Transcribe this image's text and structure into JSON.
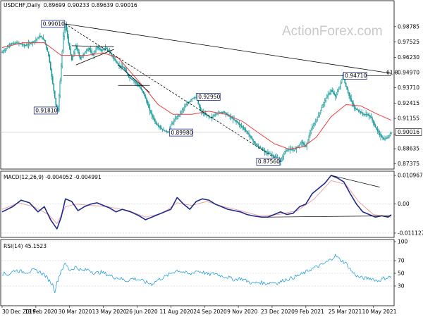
{
  "watermark": "ActionForex.com",
  "chart_data": [
    {
      "type": "line",
      "title": "USDCHF,Daily",
      "ohlc": [
        "0.89699",
        "0.90233",
        "0.89639",
        "0.90016"
      ],
      "ylim": [
        0.8706,
        1.0024
      ],
      "y_ticks": [
        "0.98785",
        "0.97525",
        "0.96230",
        "0.94970",
        "0.93710",
        "0.92415",
        "0.91155",
        "0.89860",
        "0.88635",
        "0.87375"
      ],
      "y_tick_values": [
        0.98785,
        0.97525,
        0.9623,
        0.9497,
        0.9371,
        0.92415,
        0.91155,
        0.8986,
        0.88635,
        0.87375
      ],
      "x_labels": [
        "30 Dec 2019",
        "13 Feb 2020",
        "30 Mar 2020",
        "13 May 2020",
        "26 Jun 2020",
        "11 Aug 2020",
        "24 Sep 2020",
        "9 Nov 2020",
        "23 Dec 2020",
        "9 Feb 2021",
        "25 Mar 2021",
        "10 May 2021"
      ],
      "x_label_index": [
        0,
        32,
        64,
        96,
        128,
        160,
        192,
        224,
        256,
        288,
        320,
        352
      ],
      "price_path": [
        [
          0,
          0.9665
        ],
        [
          8,
          0.9735
        ],
        [
          14,
          0.9745
        ],
        [
          22,
          0.972
        ],
        [
          30,
          0.9755
        ],
        [
          36,
          0.98
        ],
        [
          40,
          0.9765
        ],
        [
          44,
          0.964
        ],
        [
          48,
          0.9405
        ],
        [
          51,
          0.9225
        ],
        [
          53,
          0.9181
        ],
        [
          56,
          0.955
        ],
        [
          58,
          0.98
        ],
        [
          60,
          0.9901
        ],
        [
          63,
          0.974
        ],
        [
          66,
          0.96
        ],
        [
          70,
          0.972
        ],
        [
          74,
          0.961
        ],
        [
          78,
          0.966
        ],
        [
          82,
          0.97
        ],
        [
          86,
          0.964
        ],
        [
          90,
          0.971
        ],
        [
          94,
          0.968
        ],
        [
          98,
          0.97
        ],
        [
          102,
          0.967
        ],
        [
          106,
          0.961
        ],
        [
          110,
          0.956
        ],
        [
          116,
          0.953
        ],
        [
          120,
          0.946
        ],
        [
          126,
          0.942
        ],
        [
          130,
          0.938
        ],
        [
          134,
          0.933
        ],
        [
          140,
          0.918
        ],
        [
          146,
          0.907
        ],
        [
          152,
          0.902
        ],
        [
          158,
          0.8998
        ],
        [
          160,
          0.906
        ],
        [
          164,
          0.911
        ],
        [
          168,
          0.915
        ],
        [
          172,
          0.92
        ],
        [
          176,
          0.924
        ],
        [
          180,
          0.928
        ],
        [
          184,
          0.9295
        ],
        [
          188,
          0.918
        ],
        [
          192,
          0.915
        ],
        [
          198,
          0.912
        ],
        [
          204,
          0.916
        ],
        [
          210,
          0.917
        ],
        [
          216,
          0.913
        ],
        [
          222,
          0.909
        ],
        [
          228,
          0.904
        ],
        [
          234,
          0.898
        ],
        [
          240,
          0.89
        ],
        [
          246,
          0.886
        ],
        [
          252,
          0.883
        ],
        [
          258,
          0.88
        ],
        [
          262,
          0.878
        ],
        [
          264,
          0.8756
        ],
        [
          268,
          0.884
        ],
        [
          272,
          0.886
        ],
        [
          276,
          0.885
        ],
        [
          280,
          0.888
        ],
        [
          284,
          0.892
        ],
        [
          288,
          0.888
        ],
        [
          292,
          0.9
        ],
        [
          296,
          0.907
        ],
        [
          300,
          0.914
        ],
        [
          304,
          0.923
        ],
        [
          308,
          0.93
        ],
        [
          312,
          0.935
        ],
        [
          316,
          0.93
        ],
        [
          320,
          0.938
        ],
        [
          323,
          0.9471
        ],
        [
          326,
          0.938
        ],
        [
          330,
          0.928
        ],
        [
          334,
          0.92
        ],
        [
          338,
          0.918
        ],
        [
          342,
          0.915
        ],
        [
          346,
          0.915
        ],
        [
          350,
          0.912
        ],
        [
          354,
          0.904
        ],
        [
          358,
          0.898
        ],
        [
          362,
          0.894
        ],
        [
          366,
          0.896
        ],
        [
          369,
          0.9002
        ]
      ],
      "ma_path": [
        [
          0,
          0.9705
        ],
        [
          20,
          0.9745
        ],
        [
          40,
          0.9745
        ],
        [
          56,
          0.964
        ],
        [
          64,
          0.964
        ],
        [
          80,
          0.964
        ],
        [
          96,
          0.966
        ],
        [
          110,
          0.962
        ],
        [
          124,
          0.948
        ],
        [
          136,
          0.936
        ],
        [
          148,
          0.923
        ],
        [
          162,
          0.915
        ],
        [
          180,
          0.915
        ],
        [
          196,
          0.9175
        ],
        [
          212,
          0.915
        ],
        [
          228,
          0.909
        ],
        [
          244,
          0.899
        ],
        [
          258,
          0.8905
        ],
        [
          272,
          0.886
        ],
        [
          286,
          0.888
        ],
        [
          298,
          0.896
        ],
        [
          312,
          0.913
        ],
        [
          326,
          0.923
        ],
        [
          340,
          0.922
        ],
        [
          356,
          0.915
        ],
        [
          369,
          0.91
        ]
      ],
      "trendlines": [
        {
          "from": [
            60,
            0.9901
          ],
          "to": [
            369,
            0.949
          ]
        },
        {
          "from": [
            60,
            0.9901
          ],
          "to": [
            264,
            0.8756
          ]
        },
        {
          "from": [
            66,
            0.972
          ],
          "to": [
            106,
            0.971
          ]
        },
        {
          "from": [
            70,
            0.956
          ],
          "to": [
            106,
            0.969
          ]
        },
        {
          "from": [
            110,
            0.956
          ],
          "to": [
            140,
            0.933
          ]
        },
        {
          "from": [
            110,
            0.939
          ],
          "to": [
            140,
            0.939
          ]
        }
      ],
      "fib_level": {
        "label": "61.8",
        "value": 0.9471,
        "x_from": 58,
        "x_to": 369
      },
      "current_price_label": "0.90016",
      "current_price_value": 0.90016,
      "annotations": [
        {
          "text": "0.99010",
          "x": 60,
          "y": 0.9901,
          "anchor": "right"
        },
        {
          "text": "0.91810",
          "x": 53,
          "y": 0.9181,
          "anchor": "right"
        },
        {
          "text": "0.89980",
          "x": 158,
          "y": 0.8998,
          "anchor": "left"
        },
        {
          "text": "0.92950",
          "x": 184,
          "y": 0.9295,
          "anchor": "left"
        },
        {
          "text": "0.87560",
          "x": 264,
          "y": 0.8756,
          "anchor": "right"
        },
        {
          "text": "0.94710",
          "x": 323,
          "y": 0.9471,
          "anchor": "left"
        }
      ]
    },
    {
      "type": "line",
      "title": "MACD(12,26,9) -0.004052 -0.004991",
      "ylim": [
        -0.0125,
        0.0118
      ],
      "y_ticks": [
        "0.010967",
        "0.00",
        "-0.011127"
      ],
      "y_tick_values": [
        0.010967,
        0.0,
        -0.011127
      ],
      "macd_path": [
        [
          0,
          -0.003
        ],
        [
          10,
          -0.001
        ],
        [
          18,
          0.0015
        ],
        [
          26,
          0.0005
        ],
        [
          34,
          -0.003
        ],
        [
          40,
          -0.001
        ],
        [
          46,
          -0.006
        ],
        [
          52,
          -0.0095
        ],
        [
          56,
          -0.005
        ],
        [
          60,
          0.002
        ],
        [
          66,
          0.001
        ],
        [
          72,
          -0.0025
        ],
        [
          78,
          -0.001
        ],
        [
          84,
          0.0
        ],
        [
          90,
          0.0005
        ],
        [
          96,
          -0.0005
        ],
        [
          102,
          -0.0015
        ],
        [
          108,
          -0.003
        ],
        [
          114,
          -0.002
        ],
        [
          122,
          -0.003
        ],
        [
          130,
          -0.0045
        ],
        [
          136,
          -0.006
        ],
        [
          142,
          -0.005
        ],
        [
          148,
          -0.004
        ],
        [
          154,
          -0.003
        ],
        [
          160,
          -0.002
        ],
        [
          166,
          0.0025
        ],
        [
          172,
          0.0
        ],
        [
          178,
          -0.002
        ],
        [
          184,
          0.001
        ],
        [
          190,
          0.002
        ],
        [
          196,
          0.0015
        ],
        [
          202,
          0.0
        ],
        [
          208,
          -0.001
        ],
        [
          214,
          -0.002
        ],
        [
          220,
          -0.0025
        ],
        [
          226,
          -0.003
        ],
        [
          232,
          -0.004
        ],
        [
          238,
          -0.0045
        ],
        [
          246,
          -0.005
        ],
        [
          252,
          -0.005
        ],
        [
          258,
          -0.004
        ],
        [
          264,
          -0.003
        ],
        [
          270,
          -0.004
        ],
        [
          276,
          -0.0035
        ],
        [
          282,
          -0.001
        ],
        [
          288,
          0.0
        ],
        [
          294,
          0.004
        ],
        [
          300,
          0.006
        ],
        [
          306,
          0.008
        ],
        [
          312,
          0.011
        ],
        [
          318,
          0.01
        ],
        [
          324,
          0.0085
        ],
        [
          330,
          0.004
        ],
        [
          336,
          0.0
        ],
        [
          342,
          -0.003
        ],
        [
          348,
          -0.004
        ],
        [
          354,
          -0.005
        ],
        [
          360,
          -0.0045
        ],
        [
          366,
          -0.005
        ],
        [
          369,
          -0.0041
        ]
      ],
      "signal_path": [
        [
          0,
          -0.002
        ],
        [
          16,
          0.0005
        ],
        [
          30,
          -0.001
        ],
        [
          44,
          -0.004
        ],
        [
          52,
          -0.0075
        ],
        [
          60,
          -0.001
        ],
        [
          70,
          0.0
        ],
        [
          84,
          -0.0005
        ],
        [
          100,
          -0.001
        ],
        [
          120,
          -0.0025
        ],
        [
          136,
          -0.005
        ],
        [
          152,
          -0.0035
        ],
        [
          166,
          0.0005
        ],
        [
          180,
          -0.0005
        ],
        [
          194,
          0.001
        ],
        [
          210,
          -0.001
        ],
        [
          226,
          -0.0025
        ],
        [
          244,
          -0.0045
        ],
        [
          262,
          -0.004
        ],
        [
          280,
          -0.0025
        ],
        [
          296,
          0.002
        ],
        [
          312,
          0.009
        ],
        [
          326,
          0.0075
        ],
        [
          338,
          0.001
        ],
        [
          352,
          -0.004
        ],
        [
          369,
          -0.005
        ]
      ],
      "trendlines": [
        {
          "from": [
            252,
            -0.005
          ],
          "to": [
            369,
            -0.0045
          ]
        },
        {
          "from": [
            312,
            0.011
          ],
          "to": [
            358,
            0.0065
          ]
        }
      ]
    },
    {
      "type": "line",
      "title": "RSI(14) 45.1523",
      "ylim": [
        0,
        100
      ],
      "y_ticks": [
        "100",
        "70",
        "50",
        "30"
      ],
      "y_tick_values": [
        100,
        70,
        50,
        30
      ],
      "rsi_path": [
        [
          0,
          50
        ],
        [
          6,
          48
        ],
        [
          12,
          55
        ],
        [
          18,
          53
        ],
        [
          24,
          52
        ],
        [
          30,
          55
        ],
        [
          36,
          52
        ],
        [
          40,
          48
        ],
        [
          44,
          40
        ],
        [
          48,
          32
        ],
        [
          50,
          22
        ],
        [
          52,
          35
        ],
        [
          56,
          55
        ],
        [
          60,
          65
        ],
        [
          64,
          55
        ],
        [
          70,
          60
        ],
        [
          76,
          54
        ],
        [
          82,
          56
        ],
        [
          88,
          50
        ],
        [
          94,
          52
        ],
        [
          100,
          48
        ],
        [
          106,
          44
        ],
        [
          112,
          42
        ],
        [
          118,
          38
        ],
        [
          124,
          42
        ],
        [
          130,
          40
        ],
        [
          136,
          36
        ],
        [
          142,
          33
        ],
        [
          148,
          40
        ],
        [
          154,
          44
        ],
        [
          160,
          50
        ],
        [
          166,
          55
        ],
        [
          172,
          52
        ],
        [
          178,
          48
        ],
        [
          184,
          54
        ],
        [
          190,
          52
        ],
        [
          196,
          48
        ],
        [
          202,
          50
        ],
        [
          208,
          46
        ],
        [
          214,
          44
        ],
        [
          220,
          40
        ],
        [
          226,
          42
        ],
        [
          232,
          38
        ],
        [
          238,
          34
        ],
        [
          244,
          36
        ],
        [
          250,
          34
        ],
        [
          256,
          36
        ],
        [
          262,
          35
        ],
        [
          268,
          40
        ],
        [
          274,
          42
        ],
        [
          280,
          46
        ],
        [
          286,
          50
        ],
        [
          292,
          56
        ],
        [
          298,
          60
        ],
        [
          304,
          64
        ],
        [
          310,
          70
        ],
        [
          316,
          78
        ],
        [
          320,
          72
        ],
        [
          326,
          66
        ],
        [
          332,
          52
        ],
        [
          338,
          44
        ],
        [
          344,
          42
        ],
        [
          350,
          42
        ],
        [
          356,
          38
        ],
        [
          362,
          42
        ],
        [
          369,
          45
        ]
      ]
    }
  ]
}
